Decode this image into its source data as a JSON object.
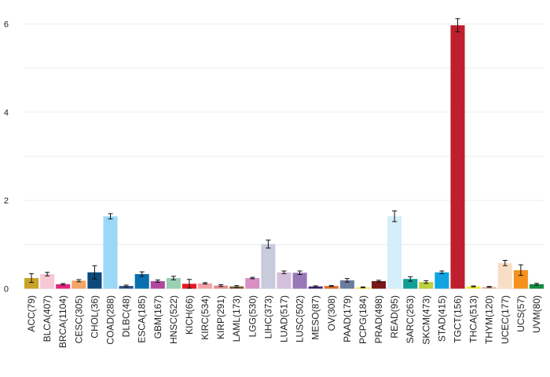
{
  "chart_data": {
    "type": "bar",
    "title": "",
    "xlabel": "",
    "ylabel": "",
    "ylim": [
      0,
      6.35
    ],
    "yticks": [
      0,
      2,
      4,
      6
    ],
    "grid": true,
    "legend": "none",
    "categories": [
      "ACC(79)",
      "BLCA(407)",
      "BRCA(1104)",
      "CESC(305)",
      "CHOL(36)",
      "COAD(288)",
      "DLBC(48)",
      "ESCA(185)",
      "GBM(167)",
      "HNSC(522)",
      "KICH(66)",
      "KIRC(534)",
      "KIRP(291)",
      "LAML(173)",
      "LGG(530)",
      "LIHC(373)",
      "LUAD(517)",
      "LUSC(502)",
      "MESO(87)",
      "OV(308)",
      "PAAD(179)",
      "PCPG(184)",
      "PRAD(498)",
      "READ(95)",
      "SARC(263)",
      "SKCM(473)",
      "STAD(415)",
      "TGCT(156)",
      "THCA(513)",
      "THYM(120)",
      "UCEC(177)",
      "UCS(57)",
      "UVM(80)"
    ],
    "values": [
      0.24,
      0.33,
      0.1,
      0.18,
      0.37,
      1.64,
      0.06,
      0.33,
      0.17,
      0.24,
      0.11,
      0.12,
      0.07,
      0.05,
      0.24,
      1.01,
      0.37,
      0.36,
      0.05,
      0.06,
      0.19,
      0.03,
      0.17,
      1.64,
      0.22,
      0.15,
      0.37,
      5.97,
      0.05,
      0.04,
      0.58,
      0.42,
      0.1
    ],
    "errors": [
      0.1,
      0.04,
      0.015,
      0.025,
      0.15,
      0.06,
      0.02,
      0.05,
      0.025,
      0.04,
      0.1,
      0.015,
      0.02,
      0.02,
      0.015,
      0.09,
      0.03,
      0.04,
      0.015,
      0.01,
      0.04,
      0.01,
      0.02,
      0.12,
      0.05,
      0.03,
      0.03,
      0.15,
      0.01,
      0.01,
      0.06,
      0.12,
      0.02
    ],
    "colors": [
      "#C9A227",
      "#F8C9D4",
      "#E8237E",
      "#F3A467",
      "#0D4A7B",
      "#9BD8F7",
      "#2E4E8F",
      "#0A6FAE",
      "#B14A9E",
      "#9BD0B1",
      "#E8191F",
      "#F2A3A8",
      "#E98B90",
      "#7A5A2A",
      "#D78FC4",
      "#C8CBDB",
      "#D4C0DD",
      "#9A78B8",
      "#44237A",
      "#E56C2A",
      "#6B7D9F",
      "#F4EB25",
      "#7A1717",
      "#D4EEFA",
      "#109F96",
      "#BCD13E",
      "#10A4E1",
      "#BE1E2D",
      "#F2EC34",
      "#E7B9A4",
      "#F8DEC4",
      "#F6911E",
      "#0E8C3C"
    ]
  }
}
